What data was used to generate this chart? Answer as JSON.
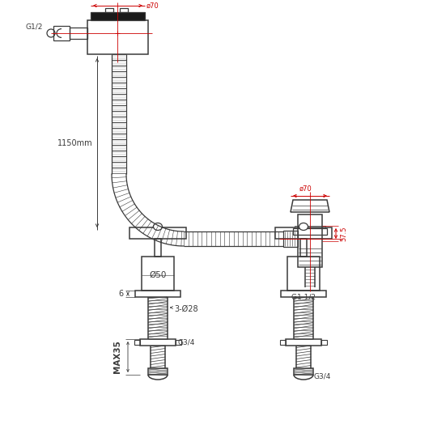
{
  "bg_color": "#ffffff",
  "line_color": "#3a3a3a",
  "dim_color": "#cc0000",
  "text_color": "#3a3a3a",
  "figsize": [
    5.35,
    5.35
  ],
  "dpi": 100,
  "annotations": {
    "phi70_top": "ø70",
    "g1_2_left": "G1/2",
    "1150mm": "1150mm",
    "phi70_right": "ø70",
    "57_5": "57.5",
    "g1_1_2": "G1 1/2",
    "phi50": "Ø50",
    "6": "6",
    "3_phi28": "3-Ø28",
    "max35": "MAX35",
    "g3_4_left": "G3/4",
    "g3_4_right": "G3/4"
  }
}
